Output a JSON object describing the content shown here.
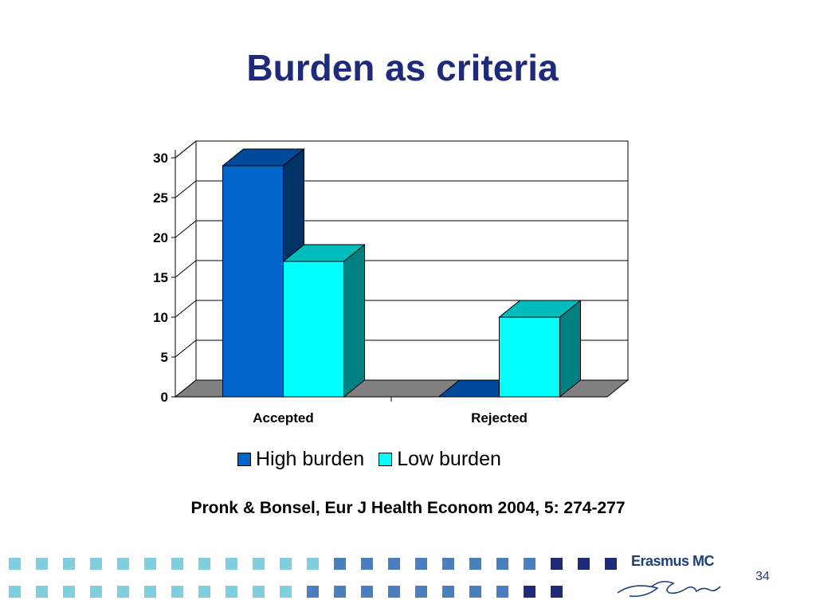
{
  "slide": {
    "title": "Burden as criteria",
    "citation": "Pronk & Bonsel, Eur J Health Econom 2004, 5: 274-277",
    "page_number": "34",
    "logo_text": "Erasmus MC"
  },
  "chart_data": {
    "type": "bar",
    "title": "",
    "xlabel": "",
    "ylabel": "",
    "categories": [
      "Accepted",
      "Rejected"
    ],
    "series": [
      {
        "name": "High burden",
        "values": [
          29,
          0
        ],
        "color": "#0066cc",
        "top_color": "#004a99",
        "side_color": "#003366"
      },
      {
        "name": "Low burden",
        "values": [
          17,
          10
        ],
        "color": "#00ffff",
        "top_color": "#00bcbc",
        "side_color": "#008080"
      }
    ],
    "ylim": [
      0,
      30
    ],
    "yticks": [
      0,
      5,
      10,
      15,
      20,
      25,
      30
    ],
    "grid": true,
    "three_d": true,
    "legend_position": "bottom"
  },
  "footer": {
    "colors": {
      "light": "#7fcfdf",
      "mid": "#4a7fc0",
      "dark": "#1f2a7a"
    }
  }
}
